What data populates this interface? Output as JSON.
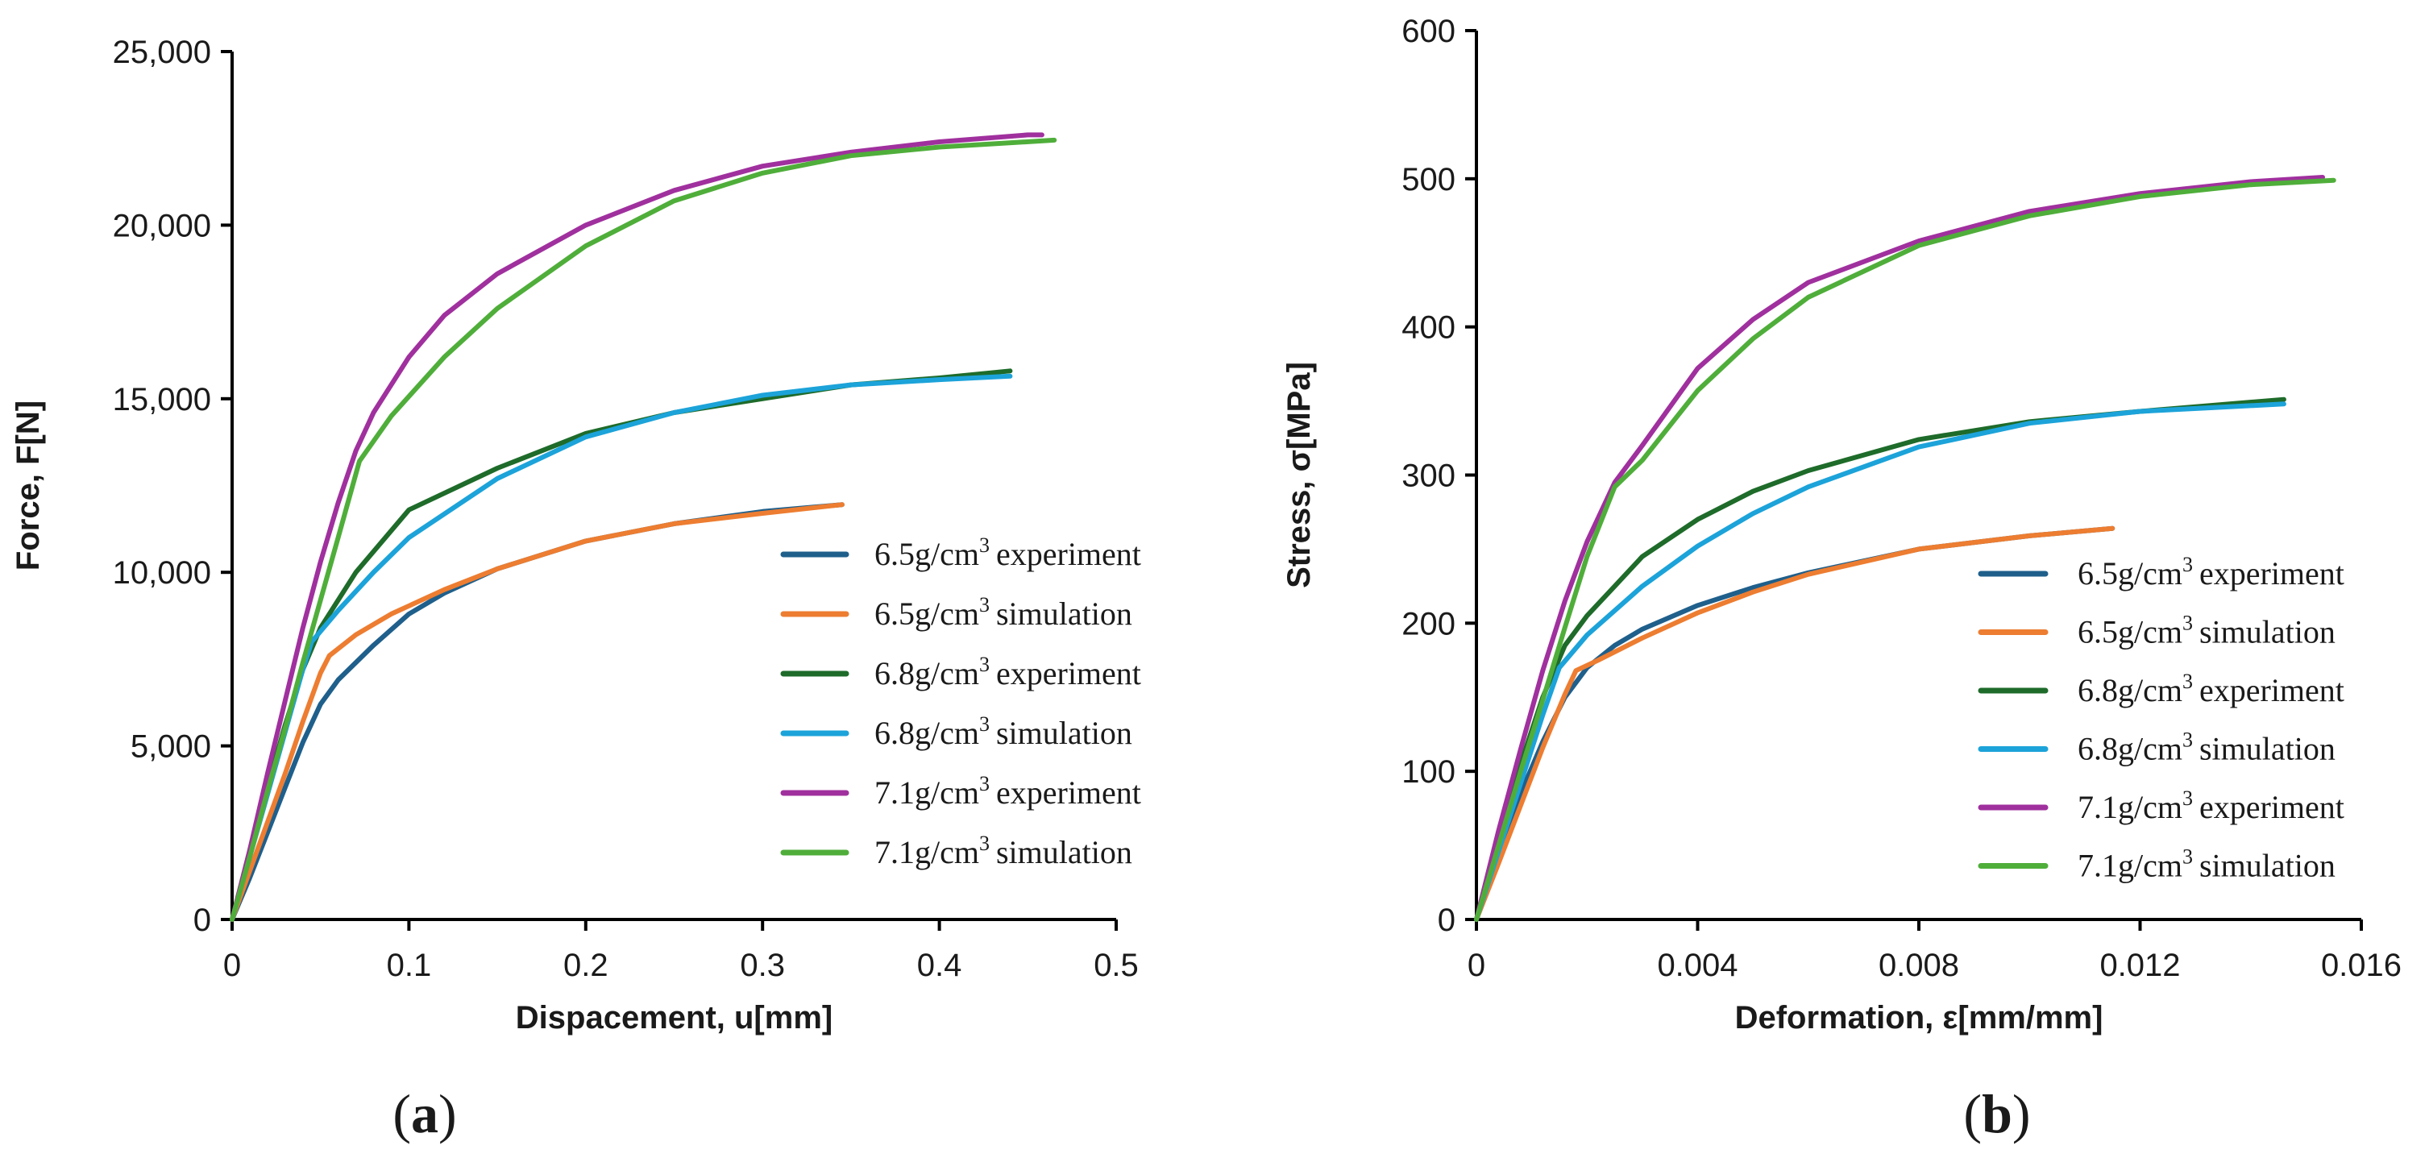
{
  "chart_data": [
    {
      "panel_label": "(a)",
      "type": "line",
      "xlabel": "Dispacement, u[mm]",
      "ylabel": "Force, F[N]",
      "xlim": [
        0,
        0.5
      ],
      "ylim": [
        0,
        25000
      ],
      "xticks": [
        0,
        0.1,
        0.2,
        0.3,
        0.4,
        0.5
      ],
      "xtick_labels": [
        "0",
        "0.1",
        "0.2",
        "0.3",
        "0.4",
        "0.5"
      ],
      "yticks": [
        0,
        5000,
        10000,
        15000,
        20000,
        25000
      ],
      "ytick_labels": [
        "0",
        "5,000",
        "10,000",
        "15,000",
        "20,000",
        "25,000"
      ],
      "legend": {
        "position": "bottom-right",
        "entries": [
          {
            "density": "6.5g/cm",
            "sup": "3",
            "kind": "experiment",
            "color": "#1f5f8b"
          },
          {
            "density": "6.5g/cm",
            "sup": "3",
            "kind": "simulation",
            "color": "#ed7d31"
          },
          {
            "density": "6.8g/cm",
            "sup": "3",
            "kind": "experiment",
            "color": "#1e6b2a"
          },
          {
            "density": "6.8g/cm",
            "sup": "3",
            "kind": "simulation",
            "color": "#1ca3d9"
          },
          {
            "density": "7.1g/cm",
            "sup": "3",
            "kind": "experiment",
            "color": "#a0309e"
          },
          {
            "density": "7.1g/cm",
            "sup": "3",
            "kind": "simulation",
            "color": "#4fae3a"
          }
        ]
      },
      "series": [
        {
          "name": "6.5g/cm3 experiment",
          "color": "#1f5f8b",
          "x": [
            0,
            0.01,
            0.02,
            0.03,
            0.04,
            0.05,
            0.06,
            0.08,
            0.1,
            0.12,
            0.15,
            0.2,
            0.25,
            0.3,
            0.345
          ],
          "y": [
            0,
            1200,
            2500,
            3800,
            5100,
            6200,
            6900,
            7900,
            8800,
            9400,
            10100,
            10900,
            11400,
            11750,
            11950
          ]
        },
        {
          "name": "6.5g/cm3 simulation",
          "color": "#ed7d31",
          "x": [
            0,
            0.01,
            0.02,
            0.03,
            0.04,
            0.05,
            0.055,
            0.07,
            0.09,
            0.12,
            0.15,
            0.2,
            0.25,
            0.3,
            0.345
          ],
          "y": [
            0,
            1400,
            2800,
            4200,
            5700,
            7100,
            7600,
            8200,
            8800,
            9500,
            10100,
            10900,
            11400,
            11700,
            11950
          ]
        },
        {
          "name": "6.8g/cm3 experiment",
          "color": "#1e6b2a",
          "x": [
            0,
            0.01,
            0.02,
            0.03,
            0.04,
            0.05,
            0.07,
            0.1,
            0.15,
            0.2,
            0.25,
            0.3,
            0.35,
            0.4,
            0.44
          ],
          "y": [
            0,
            1900,
            3800,
            5600,
            7200,
            8400,
            10000,
            11800,
            13000,
            14000,
            14600,
            15000,
            15400,
            15600,
            15800
          ]
        },
        {
          "name": "6.8g/cm3 simulation",
          "color": "#1ca3d9",
          "x": [
            0,
            0.01,
            0.02,
            0.03,
            0.04,
            0.045,
            0.06,
            0.08,
            0.1,
            0.15,
            0.2,
            0.25,
            0.3,
            0.35,
            0.4,
            0.44
          ],
          "y": [
            0,
            1800,
            3600,
            5400,
            7200,
            8000,
            8900,
            10000,
            11000,
            12700,
            13900,
            14600,
            15100,
            15400,
            15550,
            15650
          ]
        },
        {
          "name": "7.1g/cm3 experiment",
          "color": "#a0309e",
          "x": [
            0,
            0.01,
            0.02,
            0.03,
            0.04,
            0.05,
            0.06,
            0.07,
            0.08,
            0.1,
            0.12,
            0.15,
            0.2,
            0.25,
            0.3,
            0.35,
            0.4,
            0.45,
            0.458
          ],
          "y": [
            0,
            2000,
            4200,
            6300,
            8400,
            10300,
            12000,
            13500,
            14600,
            16200,
            17400,
            18600,
            20000,
            21000,
            21700,
            22100,
            22400,
            22600,
            22600
          ]
        },
        {
          "name": "7.1g/cm3 simulation",
          "color": "#4fae3a",
          "x": [
            0,
            0.01,
            0.02,
            0.03,
            0.04,
            0.05,
            0.06,
            0.072,
            0.09,
            0.12,
            0.15,
            0.2,
            0.25,
            0.3,
            0.35,
            0.4,
            0.465
          ],
          "y": [
            0,
            1800,
            3700,
            5500,
            7400,
            9200,
            11000,
            13200,
            14500,
            16200,
            17600,
            19400,
            20700,
            21500,
            22000,
            22250,
            22450
          ]
        }
      ]
    },
    {
      "panel_label": "(b)",
      "type": "line",
      "xlabel": "Deformation, ε[mm/mm]",
      "ylabel": "Stress, σ[MPa]",
      "xlim": [
        0,
        0.016
      ],
      "ylim": [
        0,
        600
      ],
      "xticks": [
        0,
        0.004,
        0.008,
        0.012,
        0.016
      ],
      "xtick_labels": [
        "0",
        "0.004",
        "0.008",
        "0.012",
        "0.016"
      ],
      "yticks": [
        0,
        100,
        200,
        300,
        400,
        500,
        600
      ],
      "ytick_labels": [
        "0",
        "100",
        "200",
        "300",
        "400",
        "500",
        "600"
      ],
      "legend": {
        "position": "bottom-right",
        "entries": [
          {
            "density": "6.5g/cm",
            "sup": "3",
            "kind": "experiment",
            "color": "#1f5f8b"
          },
          {
            "density": "6.5g/cm",
            "sup": "3",
            "kind": "simulation",
            "color": "#ed7d31"
          },
          {
            "density": "6.8g/cm",
            "sup": "3",
            "kind": "experiment",
            "color": "#1e6b2a"
          },
          {
            "density": "6.8g/cm",
            "sup": "3",
            "kind": "simulation",
            "color": "#1ca3d9"
          },
          {
            "density": "7.1g/cm",
            "sup": "3",
            "kind": "experiment",
            "color": "#a0309e"
          },
          {
            "density": "7.1g/cm",
            "sup": "3",
            "kind": "simulation",
            "color": "#4fae3a"
          }
        ]
      },
      "series": [
        {
          "name": "6.5g/cm3 experiment",
          "color": "#1f5f8b",
          "x": [
            0,
            0.0004,
            0.0008,
            0.0012,
            0.0016,
            0.002,
            0.0025,
            0.003,
            0.004,
            0.005,
            0.006,
            0.008,
            0.01,
            0.0115
          ],
          "y": [
            0,
            45,
            85,
            120,
            150,
            170,
            185,
            196,
            212,
            224,
            234,
            250,
            259,
            264
          ]
        },
        {
          "name": "6.5g/cm3 simulation",
          "color": "#ed7d31",
          "x": [
            0,
            0.0004,
            0.0008,
            0.0012,
            0.0016,
            0.0018,
            0.0022,
            0.003,
            0.004,
            0.005,
            0.006,
            0.008,
            0.01,
            0.0115
          ],
          "y": [
            0,
            38,
            77,
            116,
            152,
            168,
            175,
            190,
            207,
            221,
            233,
            250,
            259,
            264
          ]
        },
        {
          "name": "6.8g/cm3 experiment",
          "color": "#1e6b2a",
          "x": [
            0,
            0.0004,
            0.0008,
            0.0012,
            0.0016,
            0.002,
            0.0025,
            0.003,
            0.004,
            0.005,
            0.006,
            0.008,
            0.01,
            0.012,
            0.0146
          ],
          "y": [
            0,
            55,
            105,
            150,
            185,
            205,
            225,
            245,
            270,
            289,
            303,
            324,
            336,
            343,
            351
          ]
        },
        {
          "name": "6.8g/cm3 simulation",
          "color": "#1ca3d9",
          "x": [
            0,
            0.0004,
            0.0008,
            0.0012,
            0.0015,
            0.002,
            0.003,
            0.004,
            0.005,
            0.006,
            0.008,
            0.01,
            0.012,
            0.0146
          ],
          "y": [
            0,
            46,
            92,
            138,
            170,
            192,
            225,
            252,
            274,
            292,
            319,
            335,
            343,
            348
          ]
        },
        {
          "name": "7.1g/cm3 experiment",
          "color": "#a0309e",
          "x": [
            0,
            0.0004,
            0.0008,
            0.0012,
            0.0016,
            0.002,
            0.0025,
            0.003,
            0.004,
            0.005,
            0.006,
            0.008,
            0.01,
            0.012,
            0.014,
            0.0153
          ],
          "y": [
            0,
            60,
            115,
            168,
            215,
            255,
            295,
            320,
            372,
            405,
            430,
            458,
            478,
            490,
            498,
            501
          ]
        },
        {
          "name": "7.1g/cm3 simulation",
          "color": "#4fae3a",
          "x": [
            0,
            0.0004,
            0.0008,
            0.0012,
            0.0016,
            0.002,
            0.0025,
            0.003,
            0.004,
            0.005,
            0.006,
            0.008,
            0.01,
            0.012,
            0.014,
            0.0155
          ],
          "y": [
            0,
            50,
            100,
            148,
            197,
            245,
            292,
            310,
            357,
            392,
            420,
            455,
            475,
            488,
            496,
            499
          ]
        }
      ]
    }
  ]
}
